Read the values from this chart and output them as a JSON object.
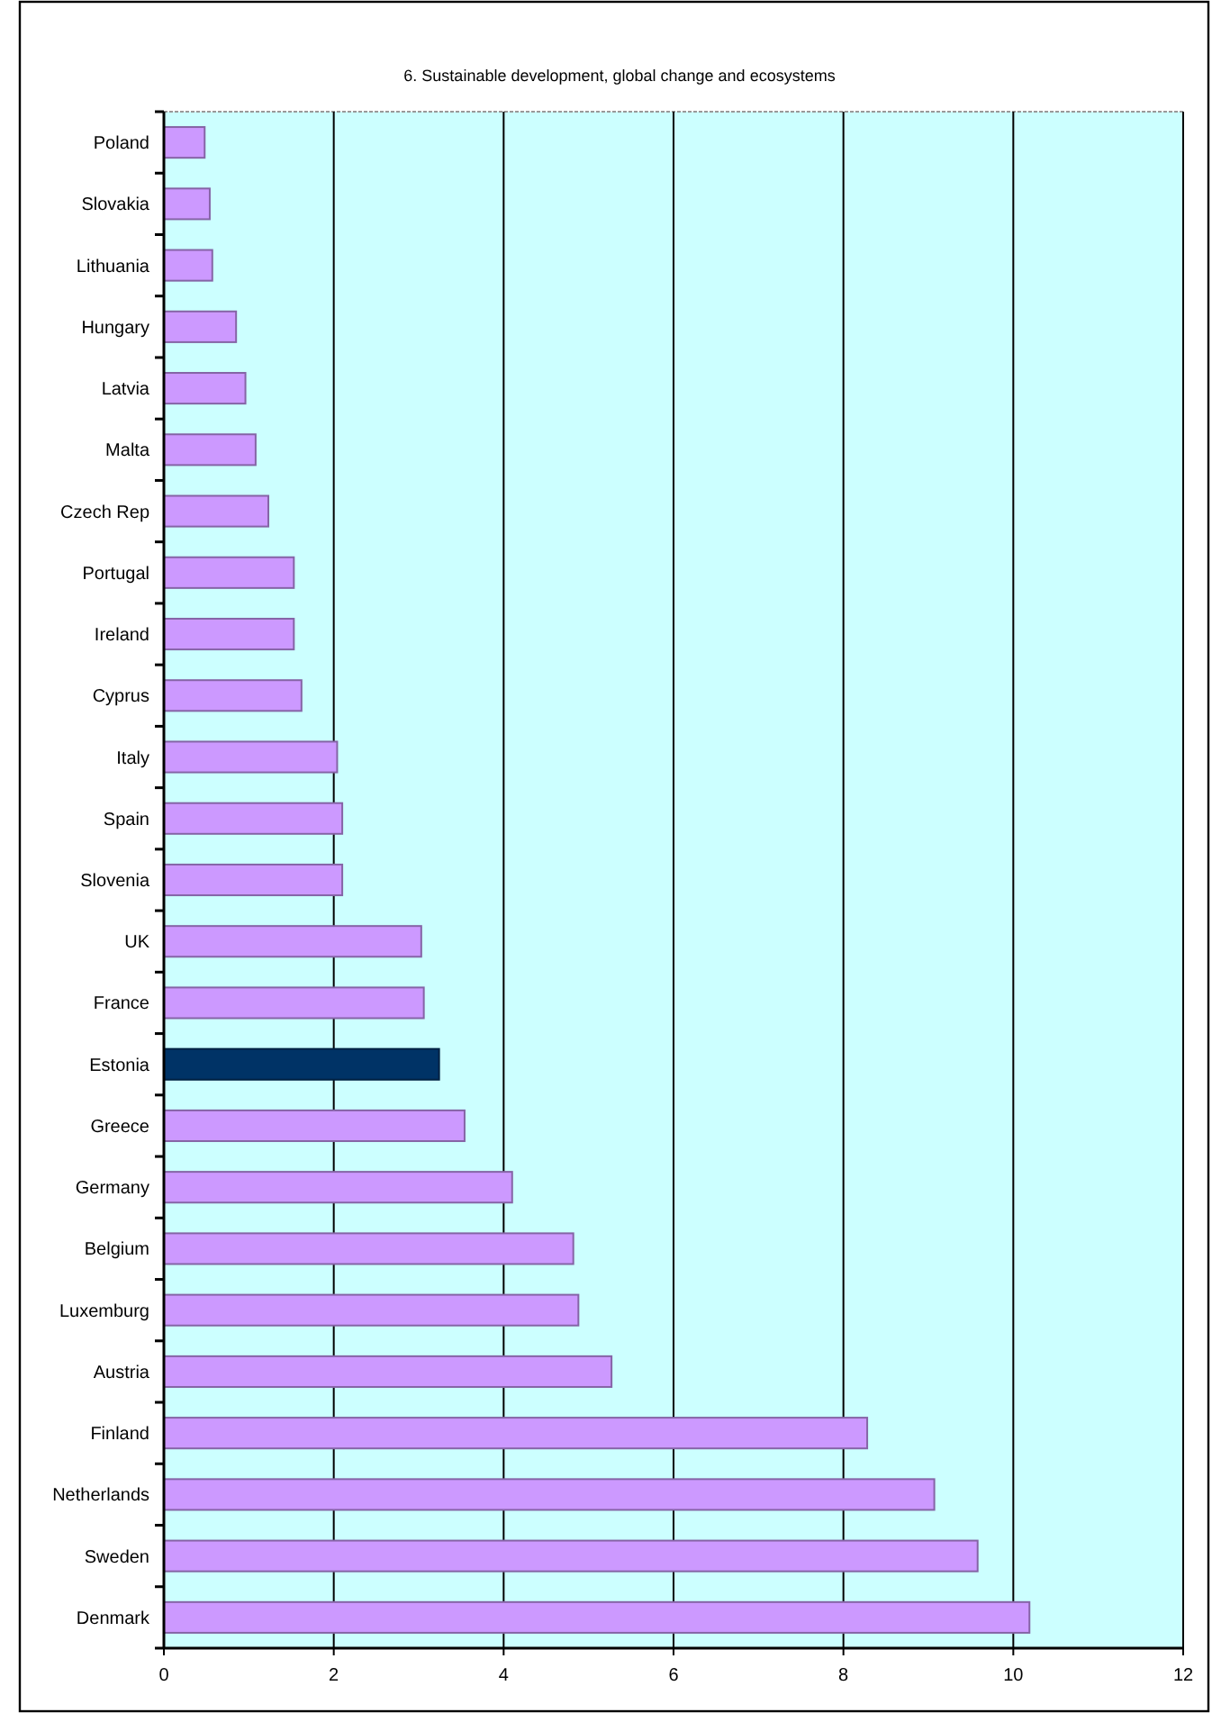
{
  "chart_data": {
    "type": "bar",
    "orientation": "horizontal",
    "title": "6. Sustainable development, global change and ecosystems",
    "categories": [
      "Poland",
      "Slovakia",
      "Lithuania",
      "Hungary",
      "Latvia",
      "Malta",
      "Czech Rep",
      "Portugal",
      "Ireland",
      "Cyprus",
      "Italy",
      "Spain",
      "Slovenia",
      "UK",
      "France",
      "Estonia",
      "Greece",
      "Germany",
      "Belgium",
      "Luxemburg",
      "Austria",
      "Finland",
      "Netherlands",
      "Sweden",
      "Denmark"
    ],
    "values": [
      0.48,
      0.54,
      0.57,
      0.85,
      0.96,
      1.08,
      1.23,
      1.53,
      1.53,
      1.62,
      2.04,
      2.1,
      2.1,
      3.03,
      3.06,
      3.24,
      3.54,
      4.1,
      4.82,
      4.88,
      5.27,
      8.28,
      9.07,
      9.58,
      10.19
    ],
    "colors": [
      "#cc99ff",
      "#cc99ff",
      "#cc99ff",
      "#cc99ff",
      "#cc99ff",
      "#cc99ff",
      "#cc99ff",
      "#cc99ff",
      "#cc99ff",
      "#cc99ff",
      "#cc99ff",
      "#cc99ff",
      "#cc99ff",
      "#cc99ff",
      "#cc99ff",
      "#003366",
      "#cc99ff",
      "#cc99ff",
      "#cc99ff",
      "#cc99ff",
      "#cc99ff",
      "#cc99ff",
      "#cc99ff",
      "#cc99ff",
      "#cc99ff"
    ],
    "xlim": [
      0,
      12
    ],
    "xticks": [
      0,
      2,
      4,
      6,
      8,
      10,
      12
    ],
    "grid": "x"
  }
}
